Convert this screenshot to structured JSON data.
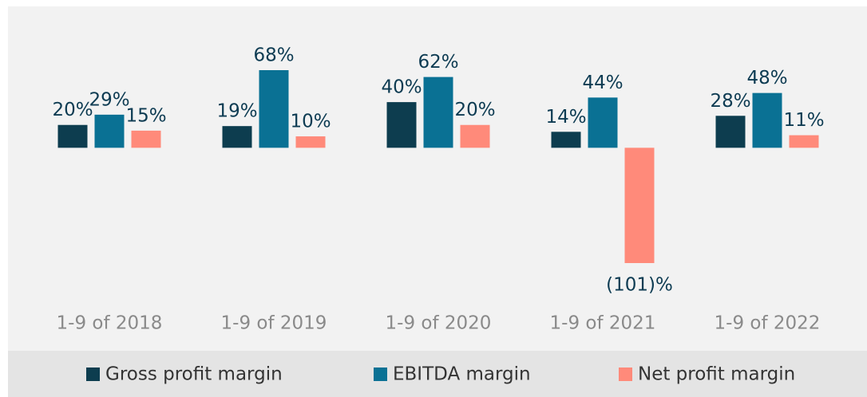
{
  "chart_data": {
    "type": "bar",
    "categories": [
      "1-9 of 2018",
      "1-9 of 2019",
      "1-9 of 2020",
      "1-9 of 2021",
      "1-9 of 2022"
    ],
    "series": [
      {
        "name": "Gross profit margin",
        "color": "#0d3d4f",
        "values": [
          20,
          19,
          40,
          14,
          28
        ],
        "value_labels": [
          "20%",
          "19%",
          "40%",
          "14%",
          "28%"
        ]
      },
      {
        "name": "EBITDA margin",
        "color": "#0a7194",
        "values": [
          29,
          68,
          62,
          44,
          48
        ],
        "value_labels": [
          "29%",
          "68%",
          "62%",
          "44%",
          "48%"
        ]
      },
      {
        "name": "Net profit margin",
        "color": "#ff8a7a",
        "values": [
          15,
          10,
          20,
          -101,
          11
        ],
        "value_labels": [
          "15%",
          "10%",
          "20%",
          "(101)%",
          "11%"
        ]
      }
    ],
    "legend": "bottom"
  }
}
